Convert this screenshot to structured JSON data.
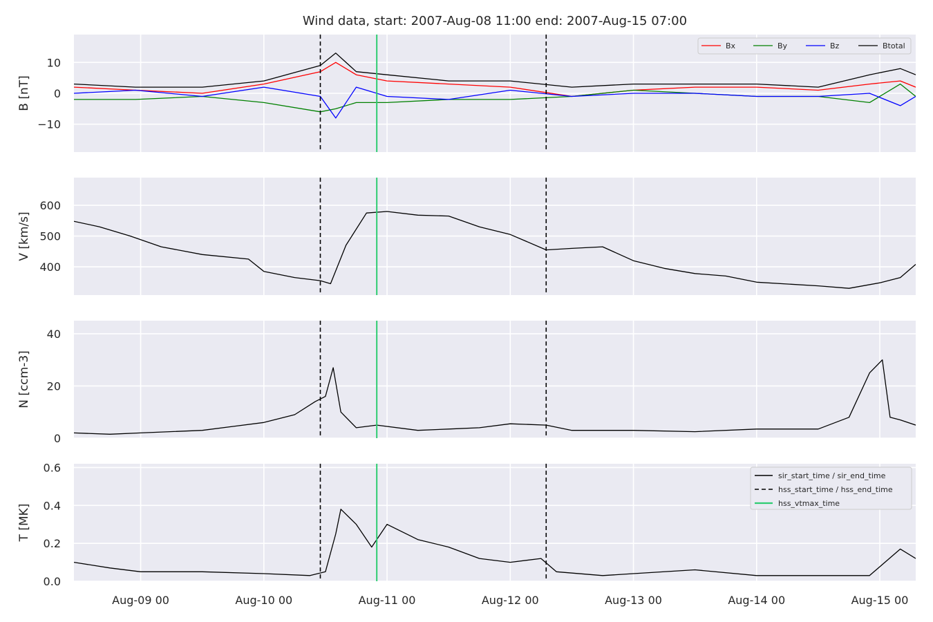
{
  "chart_data": {
    "type": "line",
    "title": "Wind data, start: 2007-Aug-08 11:00  end: 2007-Aug-15 07:00",
    "x_range": [
      "2007-08-08 11:00",
      "2007-08-15 07:00"
    ],
    "x_ticks": [
      "2007-08-09 00:00",
      "2007-08-10 00:00",
      "2007-08-11 00:00",
      "2007-08-12 00:00",
      "2007-08-13 00:00",
      "2007-08-14 00:00",
      "2007-08-15 00:00"
    ],
    "x_tick_labels": [
      "Aug-09 00",
      "Aug-10 00",
      "Aug-11 00",
      "Aug-12 00",
      "Aug-13 00",
      "Aug-14 00",
      "Aug-15 00"
    ],
    "grid": true,
    "background": "#EAEAF2",
    "events": {
      "hss_start_time": "2007-08-10 11:00",
      "hss_end_time": "2007-08-12 07:00",
      "hss_vtmax_time": "2007-08-10 22:00"
    },
    "panels": [
      {
        "id": "B",
        "ylabel": "B [nT]",
        "ylim": [
          -19,
          19
        ],
        "yticks": [
          10,
          0,
          -10
        ],
        "ytick_labels": [
          "10",
          "0",
          "−10"
        ],
        "legend": {
          "placement": "top-right",
          "entries": [
            "Bx",
            "By",
            "Bz",
            "Btotal"
          ]
        },
        "series": [
          {
            "name": "Bx",
            "color": "#ff0000",
            "x": [
              "2007-08-08 11:00",
              "2007-08-08 23:00",
              "2007-08-09 12:00",
              "2007-08-10 00:00",
              "2007-08-10 11:00",
              "2007-08-10 14:00",
              "2007-08-10 18:00",
              "2007-08-11 00:00",
              "2007-08-11 12:00",
              "2007-08-12 00:00",
              "2007-08-12 12:00",
              "2007-08-13 00:00",
              "2007-08-13 12:00",
              "2007-08-14 00:00",
              "2007-08-14 12:00",
              "2007-08-14 22:00",
              "2007-08-15 04:00",
              "2007-08-15 07:00"
            ],
            "values": [
              2,
              1,
              0,
              3,
              7,
              10,
              6,
              4,
              3,
              2,
              -1,
              1,
              2,
              2,
              1,
              3,
              4,
              2
            ]
          },
          {
            "name": "By",
            "color": "#008000",
            "x": [
              "2007-08-08 11:00",
              "2007-08-08 23:00",
              "2007-08-09 12:00",
              "2007-08-10 00:00",
              "2007-08-10 11:00",
              "2007-08-10 14:00",
              "2007-08-10 18:00",
              "2007-08-11 00:00",
              "2007-08-11 12:00",
              "2007-08-12 00:00",
              "2007-08-12 12:00",
              "2007-08-13 00:00",
              "2007-08-13 12:00",
              "2007-08-14 00:00",
              "2007-08-14 12:00",
              "2007-08-14 22:00",
              "2007-08-15 04:00",
              "2007-08-15 07:00"
            ],
            "values": [
              -2,
              -2,
              -1,
              -3,
              -6,
              -5,
              -3,
              -3,
              -2,
              -2,
              -1,
              1,
              0,
              -1,
              -1,
              -3,
              3,
              -1
            ]
          },
          {
            "name": "Bz",
            "color": "#0000ff",
            "x": [
              "2007-08-08 11:00",
              "2007-08-08 23:00",
              "2007-08-09 12:00",
              "2007-08-10 00:00",
              "2007-08-10 11:00",
              "2007-08-10 14:00",
              "2007-08-10 18:00",
              "2007-08-11 00:00",
              "2007-08-11 12:00",
              "2007-08-12 00:00",
              "2007-08-12 12:00",
              "2007-08-13 00:00",
              "2007-08-13 12:00",
              "2007-08-14 00:00",
              "2007-08-14 12:00",
              "2007-08-14 22:00",
              "2007-08-15 04:00",
              "2007-08-15 07:00"
            ],
            "values": [
              0,
              1,
              -1,
              2,
              -1,
              -8,
              2,
              -1,
              -2,
              1,
              -1,
              0,
              0,
              -1,
              -1,
              0,
              -4,
              -1
            ]
          },
          {
            "name": "Btotal",
            "color": "#000000",
            "x": [
              "2007-08-08 11:00",
              "2007-08-08 23:00",
              "2007-08-09 12:00",
              "2007-08-10 00:00",
              "2007-08-10 11:00",
              "2007-08-10 14:00",
              "2007-08-10 18:00",
              "2007-08-11 00:00",
              "2007-08-11 12:00",
              "2007-08-12 00:00",
              "2007-08-12 12:00",
              "2007-08-13 00:00",
              "2007-08-13 12:00",
              "2007-08-14 00:00",
              "2007-08-14 12:00",
              "2007-08-14 22:00",
              "2007-08-15 04:00",
              "2007-08-15 07:00"
            ],
            "values": [
              3,
              2,
              2,
              4,
              9,
              13,
              7,
              6,
              4,
              4,
              2,
              3,
              3,
              3,
              2,
              6,
              8,
              6
            ]
          }
        ]
      },
      {
        "id": "V",
        "ylabel": "V [km/s]",
        "ylim": [
          308,
          690
        ],
        "yticks": [
          600,
          500,
          400
        ],
        "ytick_labels": [
          "600",
          "500",
          "400"
        ],
        "series": [
          {
            "name": "V",
            "color": "#000000",
            "x": [
              "2007-08-08 11:00",
              "2007-08-08 16:00",
              "2007-08-08 22:00",
              "2007-08-09 04:00",
              "2007-08-09 12:00",
              "2007-08-09 21:00",
              "2007-08-10 00:00",
              "2007-08-10 06:00",
              "2007-08-10 11:00",
              "2007-08-10 13:00",
              "2007-08-10 16:00",
              "2007-08-10 20:00",
              "2007-08-11 00:00",
              "2007-08-11 06:00",
              "2007-08-11 12:00",
              "2007-08-11 18:00",
              "2007-08-12 00:00",
              "2007-08-12 07:00",
              "2007-08-12 12:00",
              "2007-08-12 18:00",
              "2007-08-13 00:00",
              "2007-08-13 06:00",
              "2007-08-13 12:00",
              "2007-08-13 18:00",
              "2007-08-14 00:00",
              "2007-08-14 12:00",
              "2007-08-14 18:00",
              "2007-08-15 00:00",
              "2007-08-15 04:00",
              "2007-08-15 07:00"
            ],
            "values": [
              548,
              530,
              500,
              465,
              440,
              425,
              385,
              365,
              355,
              345,
              470,
              575,
              580,
              568,
              565,
              530,
              505,
              455,
              460,
              465,
              420,
              395,
              378,
              370,
              350,
              338,
              330,
              348,
              365,
              408
            ]
          }
        ]
      },
      {
        "id": "N",
        "ylabel": "N [ccm-3]",
        "ylim": [
          0,
          45
        ],
        "yticks": [
          40,
          20,
          0
        ],
        "ytick_labels": [
          "40",
          "20",
          "0"
        ],
        "series": [
          {
            "name": "N",
            "color": "#000000",
            "x": [
              "2007-08-08 11:00",
              "2007-08-08 18:00",
              "2007-08-09 00:00",
              "2007-08-09 12:00",
              "2007-08-09 18:00",
              "2007-08-10 00:00",
              "2007-08-10 06:00",
              "2007-08-10 10:00",
              "2007-08-10 12:00",
              "2007-08-10 13:30",
              "2007-08-10 15:00",
              "2007-08-10 18:00",
              "2007-08-10 22:00",
              "2007-08-11 06:00",
              "2007-08-11 12:00",
              "2007-08-11 18:00",
              "2007-08-12 00:00",
              "2007-08-12 07:00",
              "2007-08-12 12:00",
              "2007-08-13 00:00",
              "2007-08-13 12:00",
              "2007-08-14 00:00",
              "2007-08-14 12:00",
              "2007-08-14 18:00",
              "2007-08-14 22:00",
              "2007-08-15 00:30",
              "2007-08-15 02:00",
              "2007-08-15 04:00",
              "2007-08-15 07:00"
            ],
            "values": [
              2,
              1.5,
              2,
              3,
              4.5,
              6,
              9,
              14,
              16,
              27,
              10,
              4,
              5,
              3,
              3.5,
              4,
              5.5,
              5,
              3,
              3,
              2.5,
              3.5,
              3.5,
              8,
              25,
              30,
              8,
              7,
              5
            ]
          }
        ]
      },
      {
        "id": "T",
        "ylabel": "T [MK]",
        "ylim": [
          0,
          0.62
        ],
        "yticks": [
          0.6,
          0.4,
          0.2,
          0.0
        ],
        "ytick_labels": [
          "0.6",
          "0.4",
          "0.2",
          "0.0"
        ],
        "legend": {
          "placement": "top-right",
          "entries": [
            {
              "label": "sir_start_time / sir_end_time",
              "style": "solid",
              "color": "#000000"
            },
            {
              "label": "hss_start_time / hss_end_time",
              "style": "dashed",
              "color": "#000000"
            },
            {
              "label": "hss_vtmax_time",
              "style": "solid",
              "color": "#2ecc71"
            }
          ]
        },
        "series": [
          {
            "name": "T",
            "color": "#000000",
            "x": [
              "2007-08-08 11:00",
              "2007-08-08 18:00",
              "2007-08-09 00:00",
              "2007-08-09 12:00",
              "2007-08-10 00:00",
              "2007-08-10 09:00",
              "2007-08-10 12:00",
              "2007-08-10 14:00",
              "2007-08-10 15:00",
              "2007-08-10 18:00",
              "2007-08-10 21:00",
              "2007-08-11 00:00",
              "2007-08-11 06:00",
              "2007-08-11 12:00",
              "2007-08-11 18:00",
              "2007-08-12 00:00",
              "2007-08-12 06:00",
              "2007-08-12 09:00",
              "2007-08-12 18:00",
              "2007-08-13 00:00",
              "2007-08-13 12:00",
              "2007-08-14 00:00",
              "2007-08-14 12:00",
              "2007-08-14 22:00",
              "2007-08-15 04:00",
              "2007-08-15 07:00"
            ],
            "values": [
              0.1,
              0.07,
              0.05,
              0.05,
              0.04,
              0.03,
              0.05,
              0.25,
              0.38,
              0.3,
              0.18,
              0.3,
              0.22,
              0.18,
              0.12,
              0.1,
              0.12,
              0.05,
              0.03,
              0.04,
              0.06,
              0.03,
              0.03,
              0.03,
              0.17,
              0.12
            ]
          }
        ]
      }
    ]
  }
}
